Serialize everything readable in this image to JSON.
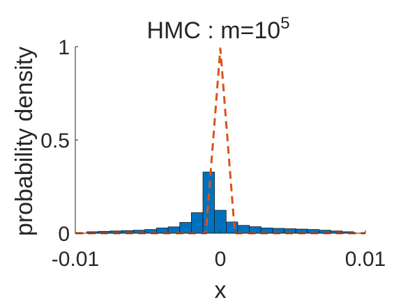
{
  "chart_data": {
    "type": "bar",
    "title": "HMC : m=10",
    "title_superscript": "5",
    "xlabel": "x",
    "ylabel": "probability density",
    "xlim": [
      -0.01,
      0.01
    ],
    "ylim": [
      0,
      1
    ],
    "x_ticks": [
      -0.01,
      0,
      0.01
    ],
    "x_tick_labels": [
      "-0.01",
      "0",
      "0.01"
    ],
    "y_ticks": [
      0,
      0.5,
      1
    ],
    "y_tick_labels": [
      "0",
      "0.5",
      "1"
    ],
    "grid": false,
    "bin_width": 0.0008,
    "bin_centers": [
      -0.0088,
      -0.008,
      -0.0072,
      -0.0064,
      -0.0056,
      -0.0048,
      -0.004,
      -0.0032,
      -0.0024,
      -0.0016,
      -0.0008,
      0,
      0.0008,
      0.0016,
      0.0024,
      0.0032,
      0.004,
      0.0048,
      0.0056,
      0.0064,
      0.0072,
      0.008,
      0.0088
    ],
    "values": [
      0.008,
      0.01,
      0.012,
      0.014,
      0.016,
      0.02,
      0.028,
      0.034,
      0.058,
      0.11,
      0.328,
      0.123,
      0.06,
      0.042,
      0.035,
      0.028,
      0.026,
      0.024,
      0.022,
      0.02,
      0.016,
      0.012,
      0.008
    ],
    "bar_color": "#0072BD",
    "bar_edge_color": "#1a1a1a",
    "reference_curve": {
      "style": "dashed",
      "color": "#D95319",
      "x": [
        -0.01,
        -0.001,
        0,
        0.001,
        0.01
      ],
      "y": [
        0,
        0,
        0.99,
        0,
        0
      ]
    }
  }
}
